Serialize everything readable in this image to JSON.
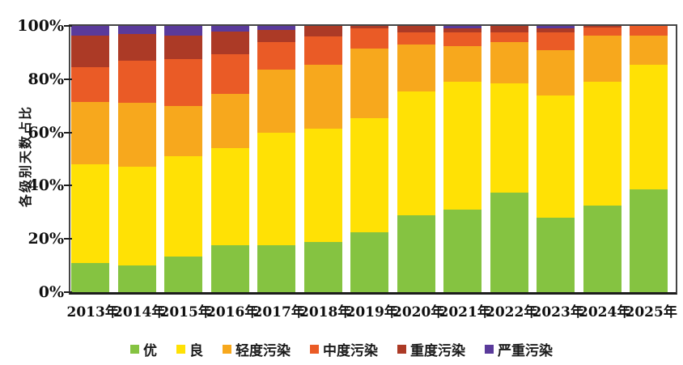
{
  "page": {
    "background": "#ffffff"
  },
  "chart_data": {
    "type": "bar",
    "stacked": true,
    "orientation": "vertical",
    "title": "",
    "xlabel": "",
    "ylabel": "各级别天数占比",
    "ylim": [
      0,
      100
    ],
    "ytick_labels": [
      "0%",
      "20%",
      "40%",
      "60%",
      "80%",
      "100%"
    ],
    "ytick_values": [
      0,
      20,
      40,
      60,
      80,
      100
    ],
    "grid": false,
    "legend_position": "bottom",
    "categories": [
      "2013年",
      "2014年",
      "2015年",
      "2016年",
      "2017年",
      "2018年",
      "2019年",
      "2020年",
      "2021年",
      "2022年",
      "2023年",
      "2024年",
      "2025年"
    ],
    "series": [
      {
        "key": "excellent",
        "name": "优",
        "color": "#85C341",
        "values": [
          11,
          10,
          13.5,
          17.5,
          17.5,
          19,
          22.5,
          29,
          31,
          37.5,
          28,
          32.5,
          38.5
        ]
      },
      {
        "key": "good",
        "name": "良",
        "color": "#FFE105",
        "values": [
          37,
          37,
          37.5,
          36.5,
          42.5,
          42.5,
          43,
          46.5,
          48,
          41,
          46,
          46.5,
          47
        ]
      },
      {
        "key": "light-pollution",
        "name": "轻度污染",
        "color": "#F7A81D",
        "values": [
          23.5,
          24,
          19,
          20.5,
          23.5,
          24,
          26,
          17.5,
          13.5,
          15.5,
          17,
          17.5,
          11
        ]
      },
      {
        "key": "moderate-pollution",
        "name": "中度污染",
        "color": "#EA5B26",
        "values": [
          13,
          16,
          17.5,
          15,
          10.5,
          10.5,
          7.5,
          4.5,
          5,
          3.5,
          6.5,
          3,
          3.5
        ]
      },
      {
        "key": "heavy-pollution",
        "name": "重度污染",
        "color": "#AC3A26",
        "values": [
          12,
          10,
          9,
          8.5,
          4.5,
          4,
          1,
          2.5,
          1.5,
          2.5,
          1.5,
          0.5,
          0
        ]
      },
      {
        "key": "severe-pollution",
        "name": "严重污染",
        "color": "#5A3A9B",
        "values": [
          3.5,
          3,
          3.5,
          2,
          1.5,
          0,
          0,
          0,
          1,
          0,
          1,
          0,
          0
        ]
      }
    ]
  }
}
